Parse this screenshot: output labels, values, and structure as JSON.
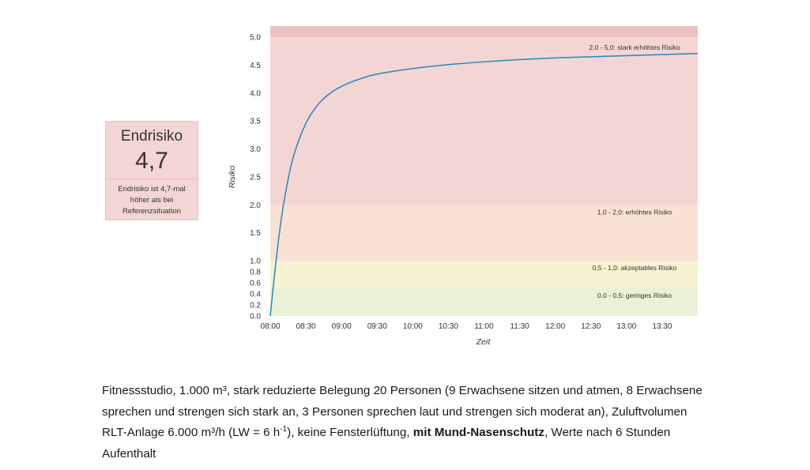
{
  "card": {
    "title": "Endrisiko",
    "value": "4,7",
    "description": "Endrisiko ist 4,7-mal höher als bei Referenzsituation"
  },
  "caption": {
    "part1": "Fitnessstudio, 1.000 m³, stark reduzierte Belegung 20 Personen (9 Erwachsene sitzen und atmen, 8 Erwachsene sprechen und strengen sich stark an, 3 Personen sprechen laut und strengen sich moderat an), Zuluftvolumen RLT-Anlage 6.000 m³/h (LW = 6 h",
    "superscript": "-1",
    "part2": "), keine Fensterlüftung, ",
    "bold": "mit Mund-Nasenschutz",
    "part3": ", Werte nach 6 Stunden Aufenthalt"
  },
  "chart_data": {
    "type": "line",
    "xlabel": "Zeit",
    "ylabel": "Risiko",
    "x_ticks": [
      "08:00",
      "08:30",
      "09:00",
      "09:30",
      "10:00",
      "10:30",
      "11:00",
      "11:30",
      "12:00",
      "12:30",
      "13:00",
      "13:30"
    ],
    "y_ticks": [
      "0.0",
      "0.2",
      "0.4",
      "0.6",
      "0.8",
      "1.0",
      "1.5",
      "2.0",
      "2.5",
      "3.0",
      "3.5",
      "4.0",
      "4.5",
      "5.0"
    ],
    "xlim": [
      "08:00",
      "14:00"
    ],
    "ylim": [
      0,
      5.2
    ],
    "grid": false,
    "line_color": "#2a8fc0",
    "zones": [
      {
        "from": 0.0,
        "to": 0.5,
        "label": "0,0 - 0,5: geringes Risiko",
        "color": "#e9f2d6"
      },
      {
        "from": 0.5,
        "to": 1.0,
        "label": "0,5 - 1,0: akzeptables Risiko",
        "color": "#f7f2d2"
      },
      {
        "from": 1.0,
        "to": 2.0,
        "label": "1,0 - 2,0: erhöhtes Risiko",
        "color": "#f7e2d4"
      },
      {
        "from": 2.0,
        "to": 5.0,
        "label": "2,0 - 5,0: stark erhöhtes Risiko",
        "color": "#f3d6d3"
      },
      {
        "from": 5.0,
        "to": 5.2,
        "label": "",
        "color": "#ebc3c0"
      }
    ],
    "series": [
      {
        "x": [
          "08:00",
          "08:05",
          "08:10",
          "08:15",
          "08:20",
          "08:30",
          "08:40",
          "08:50",
          "09:00",
          "09:15",
          "09:30",
          "10:00",
          "10:30",
          "11:00",
          "11:30",
          "12:00",
          "12:30",
          "13:00",
          "13:30",
          "14:00"
        ],
        "values": [
          0.0,
          1.02,
          1.85,
          2.45,
          2.9,
          3.46,
          3.79,
          3.99,
          4.12,
          4.25,
          4.34,
          4.44,
          4.51,
          4.56,
          4.6,
          4.63,
          4.65,
          4.67,
          4.69,
          4.71
        ]
      }
    ]
  }
}
